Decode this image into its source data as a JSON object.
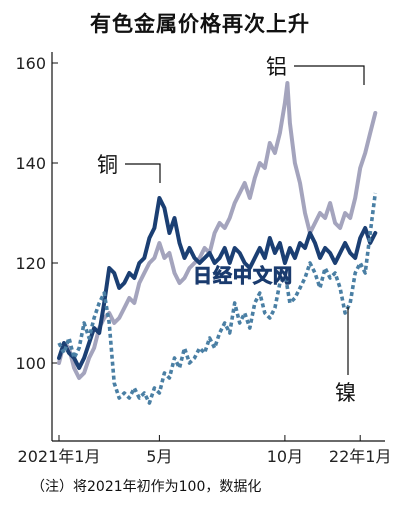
{
  "chart_data": {
    "type": "line",
    "title": "有色金属价格再次上升",
    "note": "（注）将2021年初作为100，数据化",
    "watermark": "日经中文网",
    "ylim": [
      88,
      162
    ],
    "y_ticks": [
      100,
      120,
      140,
      160
    ],
    "xlim": [
      0,
      12.8
    ],
    "x_ticks": [
      {
        "pos": 0,
        "label": "2021年1月"
      },
      {
        "pos": 4,
        "label": "5月"
      },
      {
        "pos": 9,
        "label": "10月"
      },
      {
        "pos": 12,
        "label": "22年1月"
      }
    ],
    "series": [
      {
        "name": "铝",
        "color": "#a4a4bd",
        "dash": false,
        "x": [
          0,
          0.2,
          0.4,
          0.6,
          0.8,
          1.0,
          1.2,
          1.4,
          1.6,
          1.8,
          2.0,
          2.2,
          2.4,
          2.6,
          2.8,
          3.0,
          3.2,
          3.4,
          3.6,
          3.8,
          4.0,
          4.2,
          4.4,
          4.6,
          4.8,
          5.0,
          5.2,
          5.4,
          5.6,
          5.8,
          6.0,
          6.2,
          6.4,
          6.6,
          6.8,
          7.0,
          7.2,
          7.4,
          7.6,
          7.8,
          8.0,
          8.2,
          8.4,
          8.6,
          8.8,
          9.0,
          9.1,
          9.2,
          9.4,
          9.6,
          9.8,
          10.0,
          10.2,
          10.4,
          10.6,
          10.8,
          11.0,
          11.2,
          11.4,
          11.6,
          11.8,
          12.0,
          12.2,
          12.4,
          12.6
        ],
        "y": [
          100,
          104,
          103,
          99,
          97,
          98,
          101,
          103,
          107,
          109,
          110,
          108,
          109,
          111,
          113,
          112,
          116,
          118,
          120,
          121,
          124,
          121,
          122,
          118,
          116,
          117,
          119,
          120,
          121,
          123,
          122,
          126,
          128,
          127,
          129,
          132,
          134,
          136,
          133,
          137,
          140,
          139,
          144,
          142,
          146,
          152,
          156,
          148,
          140,
          136,
          130,
          126,
          128,
          130,
          129,
          132,
          128,
          127,
          130,
          129,
          133,
          139,
          142,
          146,
          150
        ]
      },
      {
        "name": "铜",
        "color": "#1b3f73",
        "dash": false,
        "x": [
          0,
          0.2,
          0.4,
          0.6,
          0.8,
          1.0,
          1.2,
          1.4,
          1.6,
          1.8,
          2.0,
          2.2,
          2.4,
          2.6,
          2.8,
          3.0,
          3.2,
          3.4,
          3.6,
          3.8,
          4.0,
          4.2,
          4.4,
          4.6,
          4.8,
          5.0,
          5.2,
          5.4,
          5.6,
          5.8,
          6.0,
          6.2,
          6.4,
          6.6,
          6.8,
          7.0,
          7.2,
          7.4,
          7.6,
          7.8,
          8.0,
          8.2,
          8.4,
          8.6,
          8.8,
          9.0,
          9.2,
          9.4,
          9.6,
          9.8,
          10.0,
          10.2,
          10.4,
          10.6,
          10.8,
          11.0,
          11.2,
          11.4,
          11.6,
          11.8,
          12.0,
          12.2,
          12.4,
          12.6
        ],
        "y": [
          101,
          104,
          102,
          101,
          99,
          101,
          104,
          107,
          106,
          112,
          119,
          118,
          115,
          116,
          118,
          117,
          120,
          121,
          125,
          127,
          133,
          131,
          126,
          129,
          124,
          121,
          123,
          121,
          120,
          121,
          122,
          120,
          121,
          123,
          120,
          123,
          122,
          120,
          119,
          121,
          123,
          121,
          125,
          122,
          124,
          120,
          123,
          121,
          124,
          123,
          126,
          124,
          121,
          123,
          122,
          120,
          122,
          124,
          122,
          121,
          125,
          127,
          124,
          126
        ]
      },
      {
        "name": "镍",
        "color": "#4a7fa4",
        "dash": true,
        "x": [
          0,
          0.2,
          0.4,
          0.6,
          0.8,
          1.0,
          1.2,
          1.4,
          1.6,
          1.8,
          2.0,
          2.2,
          2.4,
          2.6,
          2.8,
          3.0,
          3.2,
          3.4,
          3.6,
          3.8,
          4.0,
          4.2,
          4.4,
          4.6,
          4.8,
          5.0,
          5.2,
          5.4,
          5.6,
          5.8,
          6.0,
          6.2,
          6.4,
          6.6,
          6.8,
          7.0,
          7.2,
          7.4,
          7.6,
          7.8,
          8.0,
          8.2,
          8.4,
          8.6,
          8.8,
          9.0,
          9.2,
          9.4,
          9.6,
          9.8,
          10.0,
          10.2,
          10.4,
          10.6,
          10.8,
          11.0,
          11.2,
          11.4,
          11.6,
          11.8,
          12.0,
          12.2,
          12.4,
          12.6
        ],
        "y": [
          104,
          102,
          105,
          101,
          103,
          108,
          105,
          109,
          112,
          114,
          108,
          96,
          93,
          94,
          93,
          95,
          93,
          94,
          92,
          95,
          94,
          98,
          97,
          101,
          99,
          103,
          100,
          101,
          103,
          102,
          105,
          103,
          106,
          108,
          106,
          112,
          108,
          110,
          107,
          112,
          114,
          110,
          109,
          111,
          116,
          118,
          112,
          113,
          115,
          117,
          120,
          118,
          115,
          119,
          117,
          118,
          115,
          110,
          112,
          118,
          120,
          118,
          126,
          134
        ]
      }
    ],
    "annotations": [
      {
        "text": "铝",
        "series": "铝"
      },
      {
        "text": "铜",
        "series": "铜"
      },
      {
        "text": "镍",
        "series": "镍"
      }
    ]
  }
}
